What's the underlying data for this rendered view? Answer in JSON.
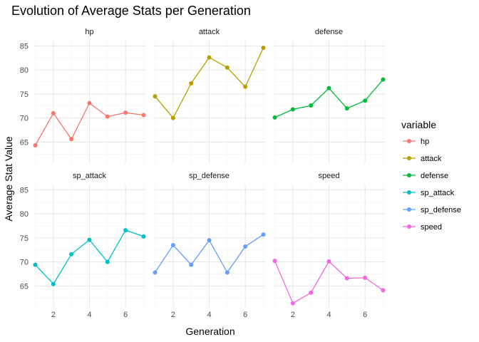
{
  "chart_data": {
    "type": "line",
    "title": "Evolution of Average Stats per Generation",
    "xlabel": "Generation",
    "ylabel": "Average Stat Value",
    "x": [
      1,
      2,
      3,
      4,
      5,
      6,
      7
    ],
    "xticks": [
      2,
      4,
      6
    ],
    "yticks": [
      65,
      70,
      75,
      80,
      85
    ],
    "xlim": [
      0.9,
      7.1
    ],
    "ylim": [
      60.6,
      86.1
    ],
    "grid": true,
    "legend": {
      "title": "variable",
      "position": "right"
    },
    "facets": [
      {
        "name": "hp",
        "color": "#F8766D",
        "values": [
          64.3,
          71.0,
          65.6,
          73.1,
          70.3,
          71.1,
          70.6
        ]
      },
      {
        "name": "attack",
        "color": "#B79F00",
        "values": [
          74.5,
          70.0,
          77.2,
          82.6,
          80.5,
          76.5,
          84.6
        ]
      },
      {
        "name": "defense",
        "color": "#00BA38",
        "values": [
          70.1,
          71.8,
          72.6,
          76.2,
          72.0,
          73.6,
          78.0
        ]
      },
      {
        "name": "sp_attack",
        "color": "#00BFC4",
        "values": [
          69.4,
          65.4,
          71.6,
          74.6,
          70.0,
          76.6,
          75.3
        ]
      },
      {
        "name": "sp_defense",
        "color": "#619CFF",
        "values": [
          67.8,
          73.5,
          69.4,
          74.5,
          67.8,
          73.2,
          75.7
        ]
      },
      {
        "name": "speed",
        "color": "#F564E3",
        "values": [
          70.2,
          61.4,
          63.6,
          70.1,
          66.6,
          66.7,
          64.1
        ]
      }
    ]
  }
}
